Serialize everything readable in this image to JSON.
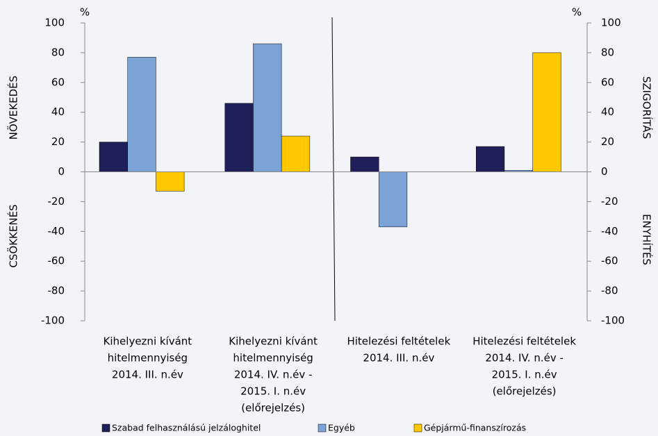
{
  "chart_data": {
    "type": "bar",
    "categories": [
      [
        "Kihelyezni kívánt",
        "hitelmennyiség",
        "2014. III. n.év"
      ],
      [
        "Kihelyezni kívánt",
        "hitelmennyiség",
        "2014. IV. n.év -",
        "2015. I. n.év",
        "(előrejelzés)"
      ],
      [
        "Hitelezési feltételek",
        "2014. III. n.év"
      ],
      [
        "Hitelezési feltételek",
        "2014. IV. n.év -",
        "2015. I. n.év",
        "(előrejelzés)"
      ]
    ],
    "series": [
      {
        "name": "Szabad felhasználású jelzáloghitel",
        "color": "#1f1f5a",
        "values": [
          20,
          46,
          10,
          17
        ]
      },
      {
        "name": "Egyéb",
        "color": "#7ba3d6",
        "values": [
          77,
          86,
          -37,
          1
        ]
      },
      {
        "name": "Gépjármű-finanszírozás",
        "color": "#ffc800",
        "values": [
          -13,
          24,
          0,
          80
        ]
      }
    ],
    "ylim": [
      -100,
      100
    ],
    "yticks": [
      -100,
      -80,
      -60,
      -40,
      -20,
      0,
      20,
      40,
      60,
      80,
      100
    ],
    "y2lim": [
      -100,
      100
    ],
    "y2ticks": [
      -100,
      -80,
      -60,
      -40,
      -20,
      0,
      20,
      40,
      60,
      80,
      100
    ],
    "y_unit": "%",
    "y2_unit": "%",
    "y_label_upper": "NÖVEKEDÉS",
    "y_label_lower": "CSÖKKENÉS",
    "y2_label_upper": "SZIGORÍTÁS",
    "y2_label_lower": "ENYHÍTÉS"
  }
}
